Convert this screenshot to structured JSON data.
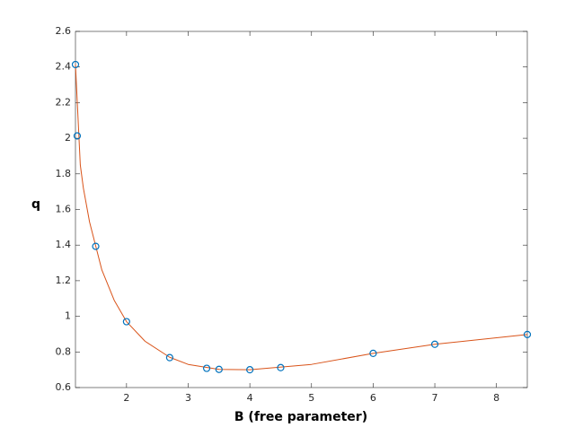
{
  "chart_data": {
    "type": "line",
    "x_label": "B (free parameter)",
    "y_label": "q",
    "xlim": [
      1.1716,
      8.5
    ],
    "ylim": [
      0.6,
      2.6
    ],
    "xticks": [
      2,
      3,
      4,
      5,
      6,
      7,
      8
    ],
    "yticks": [
      0.6,
      0.8,
      1,
      1.2,
      1.4,
      1.6,
      1.8,
      2,
      2.2,
      2.4,
      2.6
    ],
    "grid": false,
    "series": [
      {
        "mode": "line",
        "color": "#D95319",
        "x": [
          1.1716,
          1.25,
          1.3,
          1.4,
          1.6,
          1.8,
          2.0,
          2.3,
          2.7,
          3.0,
          3.5,
          4.0,
          5.0,
          6.0,
          7.0,
          8.5
        ],
        "values": [
          2.414,
          1.85,
          1.72,
          1.53,
          1.26,
          1.09,
          0.97,
          0.86,
          0.77,
          0.73,
          0.702,
          0.7,
          0.73,
          0.792,
          0.843,
          0.898
        ]
      },
      {
        "mode": "markers",
        "color": "#0072BD",
        "x": [
          1.1716,
          1.2,
          1.5,
          2,
          2.7,
          3.3,
          3.5,
          4,
          4.5,
          6,
          7,
          8.5
        ],
        "values": [
          2.414,
          2.013,
          1.393,
          0.97,
          0.768,
          0.708,
          0.702,
          0.7,
          0.712,
          0.792,
          0.843,
          0.898
        ]
      }
    ]
  }
}
